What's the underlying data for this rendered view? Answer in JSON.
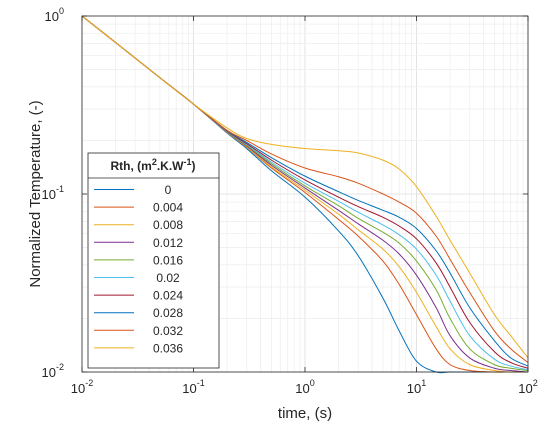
{
  "chart_data": {
    "type": "line",
    "xlabel": "time, (s)",
    "ylabel": "Normalized Temperature, (-)",
    "x_scale": "log",
    "y_scale": "log",
    "xlim": [
      0.01,
      100
    ],
    "ylim": [
      0.01,
      1
    ],
    "grid": true,
    "x_ticks": [
      {
        "base": "10",
        "exp": "-2"
      },
      {
        "base": "10",
        "exp": "-1"
      },
      {
        "base": "10",
        "exp": "0"
      },
      {
        "base": "10",
        "exp": "1"
      },
      {
        "base": "10",
        "exp": "2"
      }
    ],
    "y_ticks": [
      {
        "base": "10",
        "exp": "-2"
      },
      {
        "base": "10",
        "exp": "-1"
      },
      {
        "base": "10",
        "exp": "0"
      }
    ],
    "legend": {
      "title_main": "Rth, (m",
      "title_sup1": "2",
      "title_mid": ".K.W",
      "title_sup2": "-1",
      "title_end": ")",
      "placement": "center-left"
    },
    "x": [
      0.01,
      0.02,
      0.05,
      0.1,
      0.2,
      0.3,
      0.5,
      1,
      2,
      3,
      5,
      7,
      10,
      15,
      20,
      30,
      50,
      70,
      100
    ],
    "series": [
      {
        "name": "0",
        "color": "#0072BD",
        "values": [
          1.0,
          0.71,
          0.45,
          0.32,
          0.22,
          0.18,
          0.135,
          0.096,
          0.062,
          0.045,
          0.026,
          0.017,
          0.0115,
          0.01,
          0.01,
          0.01,
          0.01,
          0.01,
          0.01
        ]
      },
      {
        "name": "0.004",
        "color": "#D95319",
        "values": [
          1.0,
          0.71,
          0.45,
          0.32,
          0.222,
          0.183,
          0.14,
          0.102,
          0.072,
          0.058,
          0.042,
          0.031,
          0.021,
          0.0135,
          0.011,
          0.0102,
          0.01,
          0.01,
          0.01
        ]
      },
      {
        "name": "0.008",
        "color": "#EDB120",
        "values": [
          1.0,
          0.71,
          0.45,
          0.32,
          0.222,
          0.184,
          0.142,
          0.105,
          0.077,
          0.063,
          0.049,
          0.039,
          0.028,
          0.018,
          0.0135,
          0.011,
          0.0102,
          0.01,
          0.01
        ]
      },
      {
        "name": "0.012",
        "color": "#7E2F8E",
        "values": [
          1.0,
          0.71,
          0.45,
          0.32,
          0.223,
          0.186,
          0.145,
          0.108,
          0.081,
          0.068,
          0.055,
          0.046,
          0.035,
          0.023,
          0.016,
          0.012,
          0.0105,
          0.0102,
          0.01
        ]
      },
      {
        "name": "0.016",
        "color": "#77AC30",
        "values": [
          1.0,
          0.71,
          0.45,
          0.32,
          0.224,
          0.188,
          0.148,
          0.111,
          0.086,
          0.073,
          0.061,
          0.053,
          0.042,
          0.029,
          0.02,
          0.0135,
          0.011,
          0.0105,
          0.0102
        ]
      },
      {
        "name": "0.02",
        "color": "#4DBEEE",
        "values": [
          1.0,
          0.71,
          0.45,
          0.32,
          0.225,
          0.19,
          0.151,
          0.115,
          0.091,
          0.079,
          0.067,
          0.059,
          0.049,
          0.035,
          0.025,
          0.016,
          0.0118,
          0.0108,
          0.0103
        ]
      },
      {
        "name": "0.024",
        "color": "#A2142F",
        "values": [
          1.0,
          0.71,
          0.45,
          0.32,
          0.226,
          0.192,
          0.155,
          0.12,
          0.096,
          0.085,
          0.074,
          0.066,
          0.056,
          0.041,
          0.03,
          0.019,
          0.013,
          0.0113,
          0.0105
        ]
      },
      {
        "name": "0.028",
        "color": "#0072BD",
        "values": [
          1.0,
          0.71,
          0.45,
          0.32,
          0.227,
          0.195,
          0.16,
          0.126,
          0.103,
          0.092,
          0.081,
          0.074,
          0.064,
          0.048,
          0.036,
          0.023,
          0.015,
          0.012,
          0.0108
        ]
      },
      {
        "name": "0.032",
        "color": "#D95319",
        "values": [
          1.0,
          0.71,
          0.45,
          0.32,
          0.228,
          0.2,
          0.168,
          0.14,
          0.125,
          0.115,
          0.1,
          0.09,
          0.078,
          0.058,
          0.043,
          0.028,
          0.017,
          0.0135,
          0.0113
        ]
      },
      {
        "name": "0.036",
        "color": "#EDB120",
        "values": [
          1.0,
          0.71,
          0.45,
          0.32,
          0.235,
          0.205,
          0.19,
          0.18,
          0.175,
          0.17,
          0.155,
          0.138,
          0.11,
          0.075,
          0.055,
          0.036,
          0.021,
          0.016,
          0.012
        ]
      }
    ]
  }
}
